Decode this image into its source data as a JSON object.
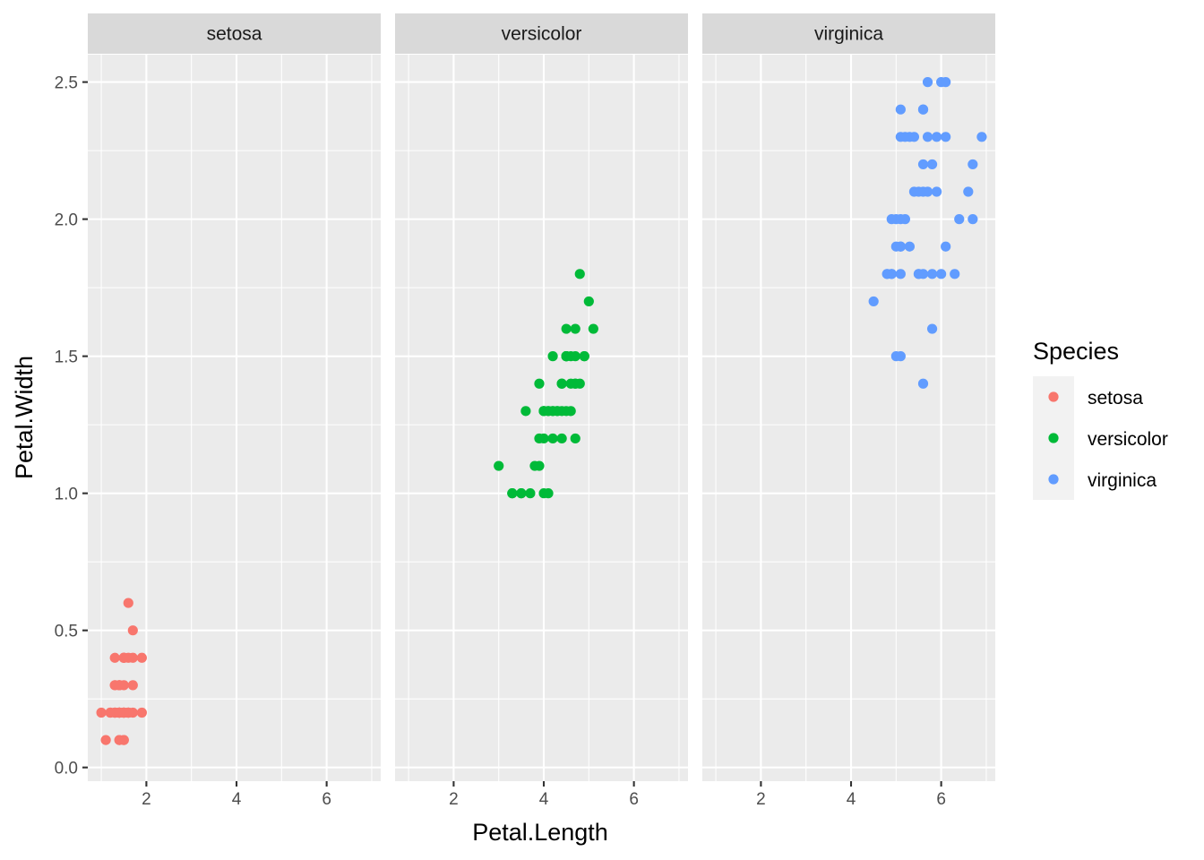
{
  "chart_data": {
    "type": "scatter",
    "facet_by": "Species",
    "facets": [
      "setosa",
      "versicolor",
      "virginica"
    ],
    "xlabel": "Petal.Length",
    "ylabel": "Petal.Width",
    "xlim": [
      0.7,
      7.2
    ],
    "ylim": [
      -0.05,
      2.6
    ],
    "x_ticks": [
      2,
      4,
      6
    ],
    "x_tick_labels": [
      "2",
      "4",
      "6"
    ],
    "y_ticks": [
      0.0,
      0.5,
      1.0,
      1.5,
      2.0,
      2.5
    ],
    "y_tick_labels": [
      "0.0",
      "0.5",
      "1.0",
      "1.5",
      "2.0",
      "2.5"
    ],
    "grid": true,
    "legend": {
      "title": "Species",
      "position": "right",
      "entries": [
        {
          "label": "setosa",
          "color": "#F8766D"
        },
        {
          "label": "versicolor",
          "color": "#00BA38"
        },
        {
          "label": "virginica",
          "color": "#619CFF"
        }
      ]
    },
    "series": [
      {
        "name": "setosa",
        "color": "#F8766D",
        "x": [
          1.4,
          1.4,
          1.3,
          1.5,
          1.4,
          1.7,
          1.4,
          1.5,
          1.4,
          1.5,
          1.5,
          1.6,
          1.4,
          1.1,
          1.2,
          1.5,
          1.3,
          1.4,
          1.7,
          1.5,
          1.7,
          1.5,
          1.0,
          1.7,
          1.9,
          1.6,
          1.6,
          1.5,
          1.4,
          1.6,
          1.6,
          1.5,
          1.5,
          1.4,
          1.5,
          1.2,
          1.3,
          1.4,
          1.3,
          1.5,
          1.3,
          1.3,
          1.3,
          1.6,
          1.9,
          1.4,
          1.6,
          1.4,
          1.5,
          1.4
        ],
        "y": [
          0.2,
          0.2,
          0.2,
          0.2,
          0.2,
          0.4,
          0.3,
          0.2,
          0.2,
          0.1,
          0.2,
          0.2,
          0.1,
          0.1,
          0.2,
          0.4,
          0.4,
          0.3,
          0.3,
          0.3,
          0.2,
          0.4,
          0.2,
          0.5,
          0.2,
          0.2,
          0.4,
          0.2,
          0.2,
          0.2,
          0.2,
          0.4,
          0.1,
          0.2,
          0.2,
          0.2,
          0.2,
          0.1,
          0.2,
          0.2,
          0.3,
          0.3,
          0.2,
          0.6,
          0.4,
          0.3,
          0.2,
          0.2,
          0.2,
          0.2
        ]
      },
      {
        "name": "versicolor",
        "color": "#00BA38",
        "x": [
          4.7,
          4.5,
          4.9,
          4.0,
          4.6,
          4.5,
          4.7,
          3.3,
          4.6,
          3.9,
          3.5,
          4.2,
          4.0,
          4.7,
          3.6,
          4.4,
          4.5,
          4.1,
          4.5,
          3.9,
          4.8,
          4.0,
          4.9,
          4.7,
          4.3,
          4.4,
          4.8,
          5.0,
          4.5,
          3.5,
          3.8,
          3.7,
          3.9,
          5.1,
          4.5,
          4.5,
          4.7,
          4.4,
          4.1,
          4.0,
          4.4,
          4.6,
          4.0,
          3.3,
          4.2,
          4.2,
          4.2,
          4.3,
          3.0,
          4.1
        ],
        "y": [
          1.4,
          1.5,
          1.5,
          1.3,
          1.5,
          1.3,
          1.6,
          1.0,
          1.3,
          1.4,
          1.0,
          1.5,
          1.0,
          1.4,
          1.3,
          1.4,
          1.5,
          1.0,
          1.5,
          1.1,
          1.8,
          1.3,
          1.5,
          1.2,
          1.3,
          1.4,
          1.4,
          1.7,
          1.5,
          1.0,
          1.1,
          1.0,
          1.2,
          1.6,
          1.5,
          1.6,
          1.5,
          1.3,
          1.3,
          1.3,
          1.2,
          1.4,
          1.2,
          1.0,
          1.3,
          1.2,
          1.3,
          1.3,
          1.1,
          1.3
        ]
      },
      {
        "name": "virginica",
        "color": "#619CFF",
        "x": [
          6.0,
          5.1,
          5.9,
          5.6,
          5.8,
          6.6,
          4.5,
          6.3,
          5.8,
          6.1,
          5.1,
          5.3,
          5.5,
          5.0,
          5.1,
          5.3,
          5.5,
          6.7,
          6.9,
          5.0,
          5.7,
          4.9,
          6.7,
          4.9,
          5.7,
          6.0,
          4.8,
          4.9,
          5.6,
          5.8,
          6.1,
          6.4,
          5.6,
          5.1,
          5.6,
          6.1,
          5.6,
          5.5,
          4.8,
          5.4,
          5.6,
          5.1,
          5.1,
          5.9,
          5.7,
          5.2,
          5.0,
          5.2,
          5.4,
          5.1
        ],
        "y": [
          2.5,
          1.9,
          2.1,
          1.8,
          2.2,
          2.1,
          1.7,
          1.8,
          1.8,
          2.5,
          2.0,
          1.9,
          2.1,
          2.0,
          2.4,
          2.3,
          1.8,
          2.2,
          2.3,
          1.5,
          2.3,
          2.0,
          2.0,
          1.8,
          2.1,
          1.8,
          1.8,
          1.8,
          2.1,
          1.6,
          1.9,
          2.0,
          2.2,
          1.5,
          1.4,
          2.3,
          2.4,
          1.8,
          1.8,
          2.1,
          2.4,
          2.3,
          1.9,
          2.3,
          2.5,
          2.3,
          1.9,
          2.0,
          2.3,
          1.8
        ]
      }
    ]
  }
}
